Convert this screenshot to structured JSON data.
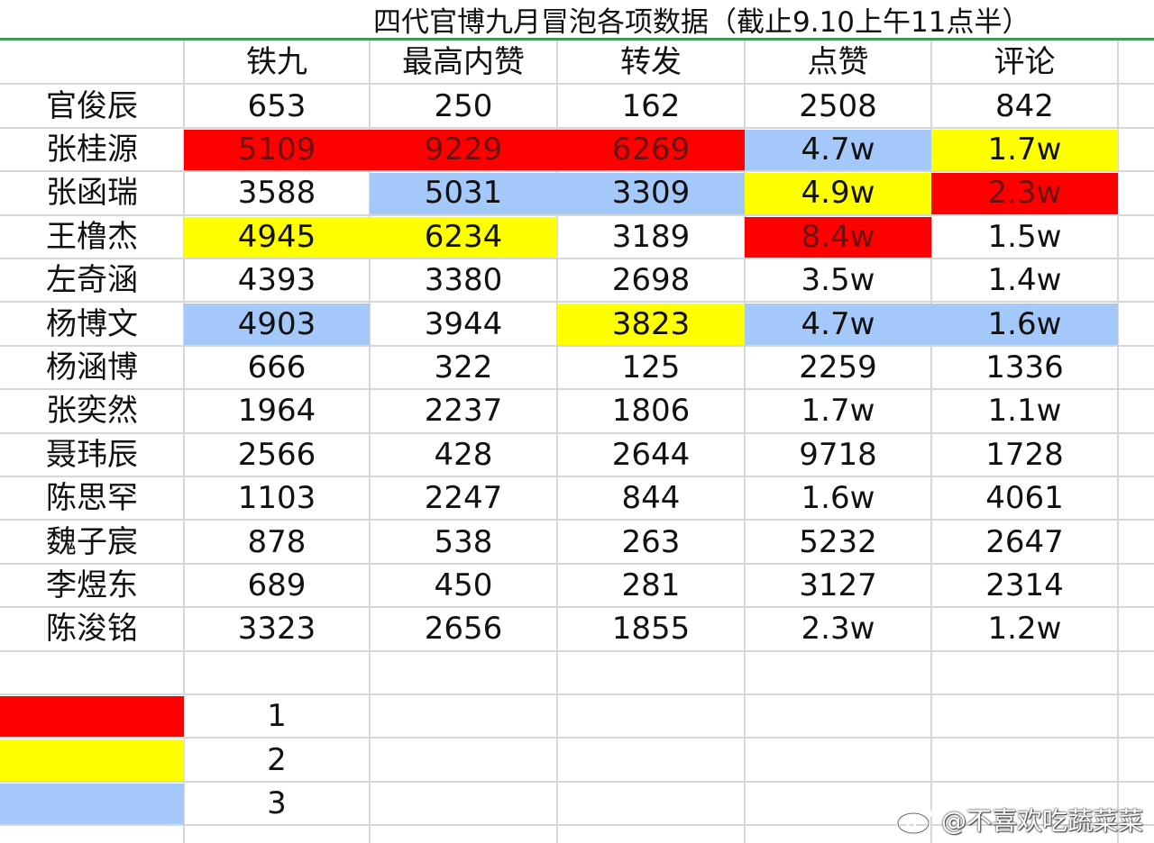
{
  "title": "四代官博九月冒泡各项数据（截止9.10上午11点半）",
  "columns": [
    "铁九",
    "最高内赞",
    "转发",
    "点赞",
    "评论"
  ],
  "rows": [
    {
      "name": "官俊辰",
      "values": [
        "653",
        "250",
        "162",
        "2508",
        "842"
      ],
      "colors": [
        "",
        "",
        "",
        "",
        ""
      ]
    },
    {
      "name": "张桂源",
      "values": [
        "5109",
        "9229",
        "6269",
        "4.7w",
        "1.7w"
      ],
      "colors": [
        "red",
        "red",
        "red",
        "blue",
        "yellow"
      ]
    },
    {
      "name": "张函瑞",
      "values": [
        "3588",
        "5031",
        "3309",
        "4.9w",
        "2.3w"
      ],
      "colors": [
        "",
        "blue",
        "blue",
        "yellow",
        "red"
      ]
    },
    {
      "name": "王橹杰",
      "values": [
        "4945",
        "6234",
        "3189",
        "8.4w",
        "1.5w"
      ],
      "colors": [
        "yellow",
        "yellow",
        "",
        "red",
        ""
      ]
    },
    {
      "name": "左奇涵",
      "values": [
        "4393",
        "3380",
        "2698",
        "3.5w",
        "1.4w"
      ],
      "colors": [
        "",
        "",
        "",
        "",
        ""
      ]
    },
    {
      "name": "杨博文",
      "values": [
        "4903",
        "3944",
        "3823",
        "4.7w",
        "1.6w"
      ],
      "colors": [
        "blue",
        "",
        "yellow",
        "blue",
        "blue"
      ]
    },
    {
      "name": "杨涵博",
      "values": [
        "666",
        "322",
        "125",
        "2259",
        "1336"
      ],
      "colors": [
        "",
        "",
        "",
        "",
        ""
      ]
    },
    {
      "name": "张奕然",
      "values": [
        "1964",
        "2237",
        "1806",
        "1.7w",
        "1.1w"
      ],
      "colors": [
        "",
        "",
        "",
        "",
        ""
      ]
    },
    {
      "name": "聂玮辰",
      "values": [
        "2566",
        "428",
        "2644",
        "9718",
        "1728"
      ],
      "colors": [
        "",
        "",
        "",
        "",
        ""
      ]
    },
    {
      "name": "陈思罕",
      "values": [
        "1103",
        "2247",
        "844",
        "1.6w",
        "4061"
      ],
      "colors": [
        "",
        "",
        "",
        "",
        ""
      ]
    },
    {
      "name": "魏子宸",
      "values": [
        "878",
        "538",
        "263",
        "5232",
        "2647"
      ],
      "colors": [
        "",
        "",
        "",
        "",
        ""
      ]
    },
    {
      "name": "李煜东",
      "values": [
        "689",
        "450",
        "281",
        "3127",
        "2314"
      ],
      "colors": [
        "",
        "",
        "",
        "",
        ""
      ]
    },
    {
      "name": "陈浚铭",
      "values": [
        "3323",
        "2656",
        "1855",
        "2.3w",
        "1.2w"
      ],
      "colors": [
        "",
        "",
        "",
        "",
        ""
      ]
    }
  ],
  "legend": [
    {
      "color": "red",
      "rank": "1"
    },
    {
      "color": "yellow",
      "rank": "2"
    },
    {
      "color": "blue",
      "rank": "3"
    }
  ],
  "palette": {
    "red": "#ff0000",
    "yellow": "#ffff00",
    "blue": "#a4c8fa",
    "header_rule": "#3f9a5c",
    "gridline": "#d7d7d7"
  },
  "watermark": {
    "icon": "weibo-logo-icon",
    "text": "@不喜欢吃蔬菜菜"
  }
}
